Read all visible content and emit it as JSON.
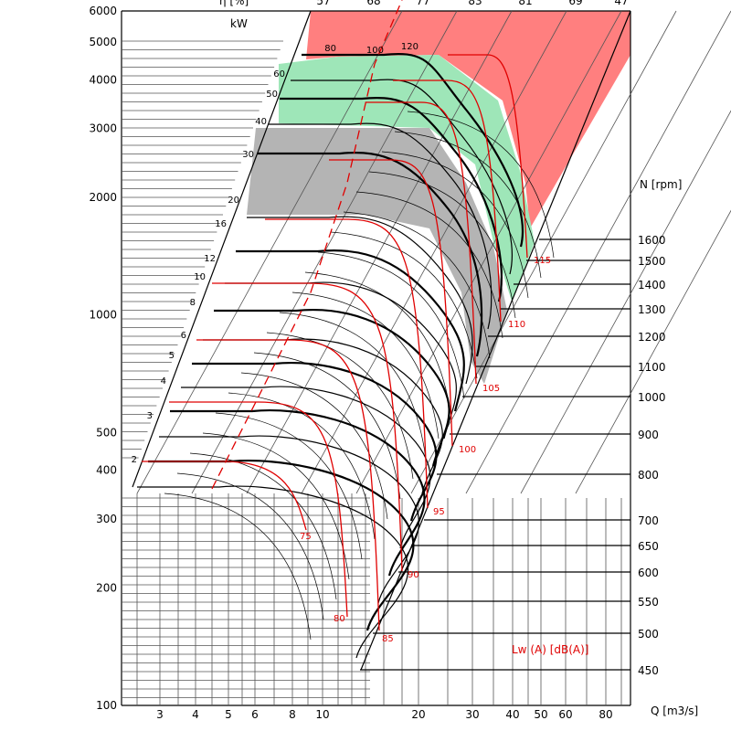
{
  "chart_data": {
    "type": "line",
    "title": "",
    "ylabel_units": "",
    "xlabel": "Q [m3/s]",
    "speed_label": "N [rpm]",
    "power_label": "kW",
    "efficiency_label": "η [%]",
    "sound_label": "Lw (A)  [dB(A)]",
    "y_log_scale": true,
    "x_log_scale": true,
    "y_ticks": [
      {
        "v": 6000,
        "t": "6000"
      },
      {
        "v": 5000,
        "t": "5000"
      },
      {
        "v": 4000,
        "t": "4000"
      },
      {
        "v": 3000,
        "t": "3000"
      },
      {
        "v": 2000,
        "t": "2000"
      },
      {
        "v": 1000,
        "t": "1000"
      },
      {
        "v": 500,
        "t": "500"
      },
      {
        "v": 400,
        "t": "400"
      },
      {
        "v": 300,
        "t": "300"
      },
      {
        "v": 200,
        "t": "200"
      },
      {
        "v": 100,
        "t": "100"
      }
    ],
    "x_ticks": [
      "3",
      "4",
      "5",
      "6",
      "8",
      "10",
      "20",
      "30",
      "40",
      "50",
      "60",
      "80"
    ],
    "efficiency_ticks": [
      "57",
      "68",
      "77",
      "83",
      "81",
      "69",
      "47"
    ],
    "speed_ticks": [
      "1600",
      "1500",
      "1400",
      "1300",
      "1200",
      "1100",
      "1000",
      "900",
      "800",
      "700",
      "650",
      "600",
      "550",
      "500",
      "450"
    ],
    "power_ticks": [
      "80",
      "100",
      "120",
      "60",
      "50",
      "40",
      "30",
      "20",
      "16",
      "12",
      "10",
      "8",
      "6",
      "5",
      "4",
      "3",
      "2"
    ],
    "sound_levels": [
      "75",
      "80",
      "85",
      "90",
      "95",
      "100",
      "105",
      "110",
      "115"
    ],
    "zones": {
      "red": "#ff7f7f",
      "green": "#9ee6b8",
      "grey": "#b4b4b4",
      "accent_red": "#e00000"
    }
  }
}
